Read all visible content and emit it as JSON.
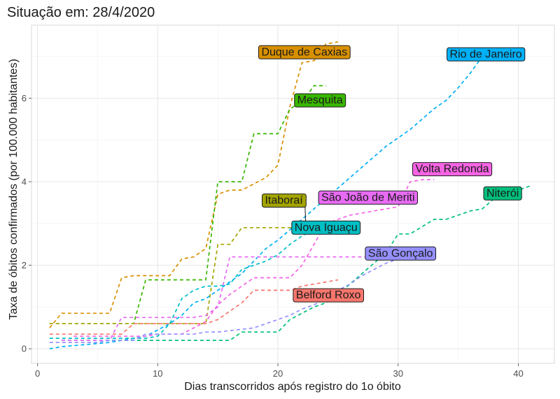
{
  "chart_data": {
    "type": "line",
    "title": "Situação em: 28/4/2020",
    "xlabel": "Dias transcorridos após registro do 1o óbito",
    "ylabel": "Taxa de óbitos confirmados (por 100.000 habitantes)",
    "xlim": [
      -0.5,
      43
    ],
    "ylim": [
      -0.35,
      7.75
    ],
    "x_ticks": [
      0,
      10,
      20,
      30,
      40
    ],
    "y_ticks": [
      0,
      2,
      4,
      6
    ],
    "grid": true,
    "legend": "none",
    "series": [
      {
        "name": "Duque de Caxias",
        "color": "#D89000",
        "points": [
          [
            1,
            0.5
          ],
          [
            2,
            0.85
          ],
          [
            5,
            0.85
          ],
          [
            6,
            0.85
          ],
          [
            7,
            1.7
          ],
          [
            8,
            1.75
          ],
          [
            10,
            1.75
          ],
          [
            11,
            1.75
          ],
          [
            12,
            2.15
          ],
          [
            13,
            2.2
          ],
          [
            14,
            2.4
          ],
          [
            15,
            3.7
          ],
          [
            16,
            3.8
          ],
          [
            17,
            3.8
          ],
          [
            18,
            3.95
          ],
          [
            19,
            4.1
          ],
          [
            20,
            4.4
          ],
          [
            21,
            5.8
          ],
          [
            22,
            6.85
          ],
          [
            23,
            6.9
          ],
          [
            24,
            7.3
          ],
          [
            25,
            7.35
          ]
        ]
      },
      {
        "name": "Mesquita",
        "color": "#39B600",
        "points": [
          [
            1,
            0.6
          ],
          [
            6,
            0.6
          ],
          [
            7,
            0.6
          ],
          [
            8,
            0.6
          ],
          [
            9,
            1.65
          ],
          [
            11,
            1.65
          ],
          [
            12,
            1.65
          ],
          [
            13,
            1.65
          ],
          [
            14,
            1.65
          ],
          [
            15,
            4.0
          ],
          [
            16,
            4.0
          ],
          [
            17,
            4.0
          ],
          [
            18,
            5.15
          ],
          [
            19,
            5.15
          ],
          [
            20,
            5.15
          ],
          [
            21,
            5.75
          ],
          [
            22,
            5.9
          ],
          [
            23,
            6.3
          ],
          [
            24,
            6.3
          ]
        ]
      },
      {
        "name": "Itaboraí",
        "color": "#A3A500",
        "points": [
          [
            1,
            0.6
          ],
          [
            14,
            0.6
          ],
          [
            15,
            2.5
          ],
          [
            16,
            2.5
          ],
          [
            17,
            2.9
          ],
          [
            18,
            2.9
          ],
          [
            20,
            2.9
          ],
          [
            21,
            2.9
          ],
          [
            22,
            2.9
          ]
        ]
      },
      {
        "name": "Rio de Janeiro",
        "color": "#00B0F6",
        "points": [
          [
            1,
            0.0
          ],
          [
            2,
            0.05
          ],
          [
            4,
            0.1
          ],
          [
            6,
            0.15
          ],
          [
            7,
            0.2
          ],
          [
            9,
            0.3
          ],
          [
            10,
            0.45
          ],
          [
            11,
            0.6
          ],
          [
            12,
            0.8
          ],
          [
            13,
            1.1
          ],
          [
            14,
            1.2
          ],
          [
            15,
            1.4
          ],
          [
            16,
            1.6
          ],
          [
            17,
            1.8
          ],
          [
            18,
            2.1
          ],
          [
            19,
            2.4
          ],
          [
            20,
            2.6
          ],
          [
            21,
            2.85
          ],
          [
            22,
            3.1
          ],
          [
            23,
            3.35
          ],
          [
            24,
            3.6
          ],
          [
            25,
            3.85
          ],
          [
            26,
            4.1
          ],
          [
            27,
            4.35
          ],
          [
            28,
            4.6
          ],
          [
            29,
            4.85
          ],
          [
            30,
            5.05
          ],
          [
            31,
            5.25
          ],
          [
            32,
            5.5
          ],
          [
            33,
            5.75
          ],
          [
            34,
            5.95
          ],
          [
            35,
            6.25
          ],
          [
            36,
            6.6
          ],
          [
            37,
            7.0
          ]
        ]
      },
      {
        "name": "Nova Iguaçu",
        "color": "#00BFC4",
        "points": [
          [
            1,
            0.25
          ],
          [
            9,
            0.25
          ],
          [
            10,
            0.3
          ],
          [
            11,
            0.6
          ],
          [
            12,
            1.2
          ],
          [
            13,
            1.4
          ],
          [
            14,
            1.5
          ],
          [
            15,
            1.5
          ],
          [
            16,
            1.55
          ],
          [
            17,
            1.9
          ],
          [
            18,
            2.0
          ],
          [
            19,
            2.1
          ],
          [
            20,
            2.25
          ],
          [
            21,
            2.5
          ],
          [
            22,
            2.7
          ],
          [
            23,
            2.85
          ],
          [
            24,
            2.95
          ],
          [
            25,
            3.05
          ]
        ]
      },
      {
        "name": "Niterói",
        "color": "#00BF7D",
        "points": [
          [
            2,
            0.2
          ],
          [
            5,
            0.2
          ],
          [
            6,
            0.2
          ],
          [
            7,
            0.2
          ],
          [
            8,
            0.2
          ],
          [
            15,
            0.2
          ],
          [
            16,
            0.2
          ],
          [
            17,
            0.4
          ],
          [
            20,
            0.4
          ],
          [
            21,
            0.7
          ],
          [
            23,
            1.0
          ],
          [
            24,
            1.1
          ],
          [
            25,
            1.3
          ],
          [
            27,
            1.8
          ],
          [
            28,
            2.05
          ],
          [
            29,
            2.3
          ],
          [
            30,
            2.75
          ],
          [
            31,
            2.75
          ],
          [
            33,
            3.1
          ],
          [
            34,
            3.1
          ],
          [
            36,
            3.3
          ],
          [
            37,
            3.35
          ],
          [
            38,
            3.6
          ],
          [
            39,
            3.7
          ],
          [
            40,
            3.8
          ],
          [
            41,
            3.9
          ]
        ]
      },
      {
        "name": "Volta Redonda",
        "color": "#F564E3",
        "points": [
          [
            3,
            0.3
          ],
          [
            5,
            0.3
          ],
          [
            6,
            0.3
          ],
          [
            9,
            0.3
          ],
          [
            10,
            0.35
          ],
          [
            11,
            0.35
          ],
          [
            12,
            0.35
          ],
          [
            13,
            0.5
          ],
          [
            14,
            0.65
          ],
          [
            15,
            1.05
          ],
          [
            16,
            1.3
          ],
          [
            17,
            1.5
          ],
          [
            18,
            1.7
          ],
          [
            21,
            1.7
          ],
          [
            22,
            2.0
          ],
          [
            23,
            2.5
          ],
          [
            24,
            3.0
          ],
          [
            25,
            3.1
          ],
          [
            26,
            3.2
          ],
          [
            27,
            3.25
          ],
          [
            28,
            3.3
          ],
          [
            29,
            3.35
          ],
          [
            30,
            3.4
          ],
          [
            31,
            4.0
          ],
          [
            32,
            4.05
          ],
          [
            33,
            4.05
          ]
        ]
      },
      {
        "name": "São João de Meriti",
        "color": "#E76BF3",
        "points": [
          [
            2,
            0.2
          ],
          [
            5,
            0.2
          ],
          [
            6,
            0.2
          ],
          [
            7,
            0.75
          ],
          [
            10,
            0.75
          ],
          [
            11,
            0.75
          ],
          [
            12,
            0.75
          ],
          [
            13,
            0.75
          ],
          [
            14,
            0.8
          ],
          [
            15,
            1.0
          ],
          [
            16,
            2.2
          ],
          [
            17,
            2.2
          ],
          [
            18,
            2.2
          ],
          [
            22,
            2.2
          ],
          [
            23,
            2.2
          ],
          [
            24,
            2.2
          ],
          [
            25,
            2.2
          ],
          [
            26,
            2.2
          ],
          [
            27,
            2.2
          ],
          [
            28,
            2.2
          ]
        ]
      },
      {
        "name": "São Gonçalo",
        "color": "#9590FF",
        "points": [
          [
            1,
            0.15
          ],
          [
            5,
            0.15
          ],
          [
            6,
            0.2
          ],
          [
            8,
            0.2
          ],
          [
            9,
            0.35
          ],
          [
            13,
            0.35
          ],
          [
            14,
            0.4
          ],
          [
            15,
            0.4
          ],
          [
            18,
            0.5
          ],
          [
            19,
            0.6
          ],
          [
            20,
            0.7
          ],
          [
            21,
            0.8
          ],
          [
            22,
            0.95
          ],
          [
            23,
            1.05
          ],
          [
            24,
            1.2
          ],
          [
            25,
            1.4
          ],
          [
            26,
            1.55
          ],
          [
            27,
            1.75
          ],
          [
            28,
            1.9
          ],
          [
            29,
            2.05
          ],
          [
            30,
            2.15
          ],
          [
            31,
            2.25
          ]
        ]
      },
      {
        "name": "Belford Roxo",
        "color": "#F8766D",
        "points": [
          [
            1,
            0.35
          ],
          [
            6,
            0.35
          ],
          [
            7,
            0.35
          ],
          [
            8,
            0.6
          ],
          [
            9,
            0.6
          ],
          [
            10,
            0.6
          ],
          [
            11,
            0.6
          ],
          [
            12,
            0.6
          ],
          [
            13,
            0.6
          ],
          [
            14,
            0.6
          ],
          [
            15,
            0.7
          ],
          [
            16,
            0.9
          ],
          [
            17,
            1.1
          ],
          [
            18,
            1.4
          ],
          [
            20,
            1.4
          ],
          [
            21,
            1.4
          ],
          [
            22,
            1.5
          ],
          [
            23,
            1.55
          ],
          [
            24,
            1.6
          ],
          [
            25,
            1.65
          ]
        ]
      }
    ],
    "labels": [
      {
        "text": "Duque de Caxias",
        "x": 22.2,
        "y": 7.1,
        "fill": "#D89000"
      },
      {
        "text": "Rio de Janeiro",
        "x": 37.3,
        "y": 7.05,
        "fill": "#00B0F6"
      },
      {
        "text": "Mesquita",
        "x": 23.5,
        "y": 5.95,
        "fill": "#39B600"
      },
      {
        "text": "Volta Redonda",
        "x": 34.5,
        "y": 4.3,
        "fill": "#F564E3"
      },
      {
        "text": "São João de Meriti",
        "x": 27.5,
        "y": 3.62,
        "fill": "#E76BF3"
      },
      {
        "text": "Itaboraí",
        "x": 20.5,
        "y": 3.55,
        "fill": "#A3A500"
      },
      {
        "text": "Niterói",
        "x": 38.7,
        "y": 3.72,
        "fill": "#00BF7D"
      },
      {
        "text": "Nova Iguaçu",
        "x": 24.0,
        "y": 2.9,
        "fill": "#00BFC4"
      },
      {
        "text": "São Gonçalo",
        "x": 30.2,
        "y": 2.28,
        "fill": "#9590FF"
      },
      {
        "text": "Belford Roxo",
        "x": 24.2,
        "y": 1.28,
        "fill": "#F8766D"
      }
    ]
  }
}
